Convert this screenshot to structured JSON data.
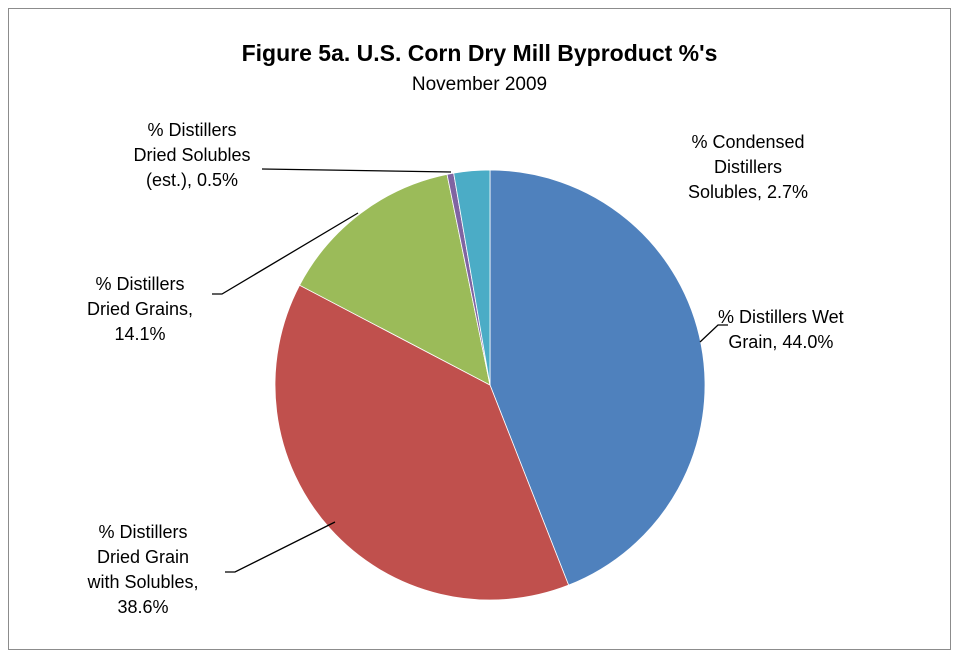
{
  "chart_data": {
    "type": "pie",
    "title": "Figure 5a. U.S. Corn Dry Mill Byproduct %'s",
    "subtitle": "November 2009",
    "start_angle_deg": 0,
    "direction": "clockwise",
    "slices": [
      {
        "label": "% Distillers Wet Grain",
        "value": 44.0,
        "value_text": "44.0%",
        "color": "#4f81bd",
        "label_lines": [
          "% Distillers Wet",
          "Grain, 44.0%"
        ]
      },
      {
        "label": "% Distillers Dried Grain with Solubles",
        "value": 38.6,
        "value_text": "38.6%",
        "color": "#c0504d",
        "label_lines": [
          "% Distillers",
          "Dried Grain",
          "with Solubles,",
          "38.6%"
        ]
      },
      {
        "label": "% Distillers Dried Grains",
        "value": 14.1,
        "value_text": "14.1%",
        "color": "#9bbb59",
        "label_lines": [
          "% Distillers",
          "Dried Grains,",
          "14.1%"
        ]
      },
      {
        "label": "% Distillers Dried Solubles (est.)",
        "value": 0.5,
        "value_text": "0.5%",
        "color": "#8064a2",
        "label_lines": [
          "% Distillers",
          "Dried Solubles",
          "(est.), 0.5%"
        ]
      },
      {
        "label": "% Condensed Distillers Solubles",
        "value": 2.7,
        "value_text": "2.7%",
        "color": "#4bacc6",
        "label_lines": [
          "% Condensed",
          "Distillers",
          "Solubles, 2.7%"
        ]
      }
    ],
    "legend": "none"
  }
}
